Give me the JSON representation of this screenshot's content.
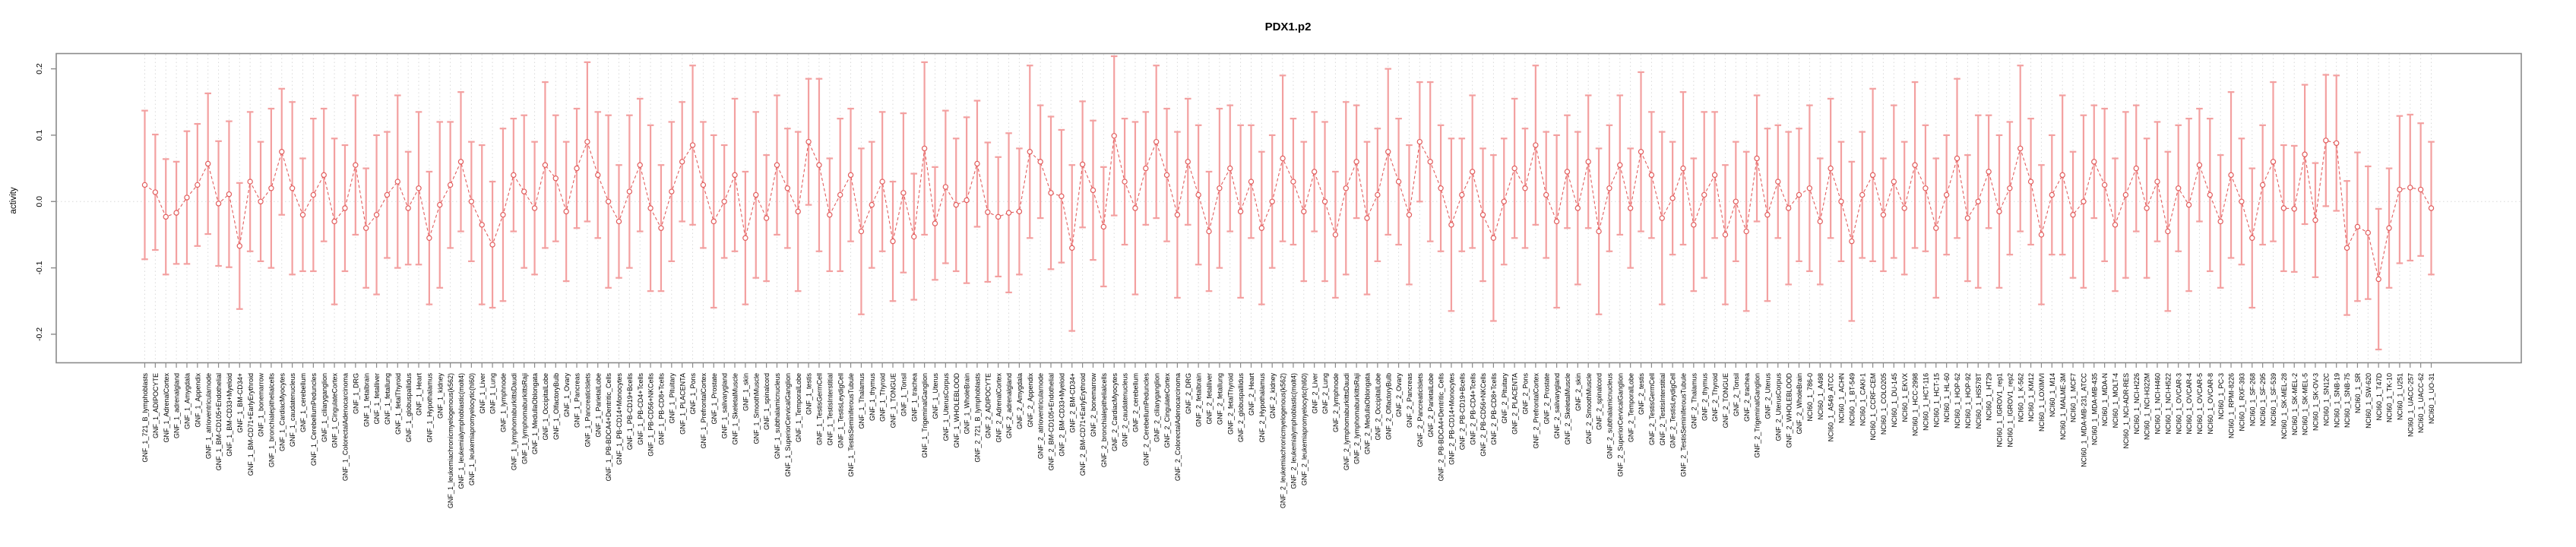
{
  "page": {
    "background": "#ffffff"
  },
  "chart_data": {
    "type": "line",
    "subtype": "points-with-confidence-intervals",
    "title": "PDX1.p2",
    "xlabel": "",
    "ylabel": "activity",
    "ylim": [
      -0.243,
      0.223
    ],
    "y_ticks": [
      0.2,
      0.1,
      0.0,
      -0.1,
      -0.2
    ],
    "grid": "vertical dotted line per category, dotted horizontal line at 0",
    "legend": "none",
    "point_style": "open-circle",
    "line_style": "dashed",
    "error_bars": true,
    "colors": {
      "point_line": "#e25d5d",
      "error_bar": "#f3a0a0",
      "grid": "#d9d9d9",
      "axis_box": "#8a8a8a",
      "text": "#000000",
      "background": "#ffffff"
    },
    "n_points": 218,
    "categories": [
      "GNF_1_721_B_lymphoblasts",
      "GNF_1_ADIPOCYTE",
      "GNF_1_AdrenalCortex",
      "GNF_1_adrenalgland",
      "GNF_1_Amygdala",
      "GNF_1_Appendix",
      "GNF_1_atrioventricularnode",
      "GNF_1_BM-CD105+Endothelial",
      "GNF_1_BM-CD33+Myeloid",
      "GNF_1_BM-CD34+",
      "GNF_1_BM-CD71+EarlyErythroid",
      "GNF_1_bonemarrow",
      "GNF_1_bronchialepithelialcells",
      "GNF_1_CardiacMyocytes",
      "GNF_1_caudatenucleus",
      "GNF_1_cerebellum",
      "GNF_1_CerebellumPeduncles",
      "GNF_1_ciliaryganglion",
      "GNF_1_CingulateCortex",
      "GNF_1_ColorectalAdenocarcinoma",
      "GNF_1_DRG",
      "GNF_1_fetalbrain",
      "GNF_1_fetalliver",
      "GNF_1_fetallung",
      "GNF_1_fetalThyroid",
      "GNF_1_globuspallidus",
      "GNF_1_Heart",
      "GNF_1_Hypothalamus",
      "GNF_1_kidney",
      "GNF_1_leukemiachronicmyelogenous(k562)",
      "GNF_1_leukemialymphoblastic(molt4)",
      "GNF_1_leukemiapromyelocytic(hl60)",
      "GNF_1_Liver",
      "GNF_1_Lung",
      "GNF_1_lymphnode",
      "GNF_1_lymphomaburkittsDaudi",
      "GNF_1_lymphomaburkittsRaji",
      "GNF_1_MedullaOblongata",
      "GNF_1_OccipitalLobe",
      "GNF_1_OlfactoryBulb",
      "GNF_1_Ovary",
      "GNF_1_Pancreas",
      "GNF_1_PancreaticIslets",
      "GNF_1_ParietalLobe",
      "GNF_1_PB-BDCA4+Dentritic_Cells",
      "GNF_1_PB-CD14+Monocytes",
      "GNF_1_PB-CD19+Bcells",
      "GNF_1_PB-CD4+Tcells",
      "GNF_1_PB-CD56+NKCells",
      "GNF_1_PB-CD8+Tcells",
      "GNF_1_Pituitary",
      "GNF_1_PLACENTA",
      "GNF_1_Pons",
      "GNF_1_PrefrontalCortex",
      "GNF_1_Prostate",
      "GNF_1_salivarygland",
      "GNF_1_SkeletalMuscle",
      "GNF_1_skin",
      "GNF_1_SmoothMuscle",
      "GNF_1_spinalcord",
      "GNF_1_subthalamicnucleus",
      "GNF_1_SuperiorCervicalGanglion",
      "GNF_1_TemporalLobe",
      "GNF_1_testis",
      "GNF_1_TestisGermCell",
      "GNF_1_TestisInterstitial",
      "GNF_1_TestisLeydigCell",
      "GNF_1_TestisSeminiferousTubule",
      "GNF_1_Thalamus",
      "GNF_1_thymus",
      "GNF_1_Thyroid",
      "GNF_1_TONGUE",
      "GNF_1_Tonsil",
      "GNF_1_trachea",
      "GNF_1_TrigeminalGanglion",
      "GNF_1_Uterus",
      "GNF_1_UterusCorpus",
      "GNF_1_WHOLEBLOOD",
      "GNF_1_WholeBrain",
      "GNF_2_721_B_lymphoblasts",
      "GNF_2_ADIPOCYTE",
      "GNF_2_AdrenalCortex",
      "GNF_2_adrenalgland",
      "GNF_2_Amygdala",
      "GNF_2_Appendix",
      "GNF_2_atrioventricularnode",
      "GNF_2_BM-CD105+Endothelial",
      "GNF_2_BM-CD33+Myeloid",
      "GNF_2_BM-CD34+",
      "GNF_2_BM-CD71+EarlyErythroid",
      "GNF_2_bonemarrow",
      "GNF_2_bronchialepithelialcells",
      "GNF_2_CardiacMyocytes",
      "GNF_2_caudatenucleus",
      "GNF_2_cerebellum",
      "GNF_2_CerebellumPeduncles",
      "GNF_2_ciliaryganglion",
      "GNF_2_CingulateCortex",
      "GNF_2_ColorectalAdenocarcinoma",
      "GNF_2_DRG",
      "GNF_2_fetalbrain",
      "GNF_2_fetalliver",
      "GNF_2_fetallung",
      "GNF_2_fetalThyroid",
      "GNF_2_globuspallidus",
      "GNF_2_Heart",
      "GNF_2_Hypothalamus",
      "GNF_2_kidney",
      "GNF_2_leukemiachronicmyelogenous(k562)",
      "GNF_2_leukemialymphoblastic(molt4)",
      "GNF_2_leukemiapromyelocytic(hl60)",
      "GNF_2_Liver",
      "GNF_2_Lung",
      "GNF_2_lymphnode",
      "GNF_2_lymphomaburkittsDaudi",
      "GNF_2_lymphomaburkittsRaji",
      "GNF_2_MedullaOblongata",
      "GNF_2_OccipitalLobe",
      "GNF_2_OlfactoryBulb",
      "GNF_2_Ovary",
      "GNF_2_Pancreas",
      "GNF_2_PancreaticIslets",
      "GNF_2_ParietalLobe",
      "GNF_2_PB-BDCA4+Dentritic_Cells",
      "GNF_2_PB-CD14+Monocytes",
      "GNF_2_PB-CD19+Bcells",
      "GNF_2_PB-CD4+Tcells",
      "GNF_2_PB-CD56+NKCells",
      "GNF_2_PB-CD8+Tcells",
      "GNF_2_Pituitary",
      "GNF_2_PLACENTA",
      "GNF_2_Pons",
      "GNF_2_PrefrontalCortex",
      "GNF_2_Prostate",
      "GNF_2_salivarygland",
      "GNF_2_SkeletalMuscle",
      "GNF_2_skin",
      "GNF_2_SmoothMuscle",
      "GNF_2_spinalcord",
      "GNF_2_subthalamicnucleus",
      "GNF_2_SuperiorCervicalGanglion",
      "GNF_2_TemporalLobe",
      "GNF_2_testis",
      "GNF_2_TestisGermCell",
      "GNF_2_TestisInterstitial",
      "GNF_2_TestisLeydigCell",
      "GNF_2_TestisSeminiferousTubule",
      "GNF_2_Thalamus",
      "GNF_2_thymus",
      "GNF_2_Thyroid",
      "GNF_2_TONGUE",
      "GNF_2_Tonsil",
      "GNF_2_trachea",
      "GNF_2_TrigeminalGanglion",
      "GNF_2_Uterus",
      "GNF_2_UterusCorpus",
      "GNF_2_WHOLEBLOOD",
      "GNF_2_WholeBrain",
      "NCI60_1_786-0",
      "NCI60_1_A498",
      "NCI60_1_A549_ATCC",
      "NCI60_1_ACHN",
      "NCI60_1_BT-549",
      "NCI60_1_CAKI-1",
      "NCI60_1_CCRF-CEM",
      "NCI60_1_COLO205",
      "NCI60_1_DU-145",
      "NCI60_1_EKVX",
      "NCI60_1_HCC-2998",
      "NCI60_1_HCT-116",
      "NCI60_1_HCT-15",
      "NCI60_1_HL-60",
      "NCI60_1_HOP-62",
      "NCI60_1_HOP-92",
      "NCI60_1_HS578T",
      "NCI60_1_HT29",
      "NCI60_1_IGROV1_rep1",
      "NCI60_1_IGROV1_rep2",
      "NCI60_1_K-562",
      "NCI60_1_KM12",
      "NCI60_1_LOXIMVI",
      "NCI60_1_M14",
      "NCI60_1_MALME-3M",
      "NCI60_1_MCF7",
      "NCI60_1_MDA-MB-231_ATCC",
      "NCI60_1_MDA-MB-435",
      "NCI60_1_MDA-N",
      "NCI60_1_MOLT-4",
      "NCI60_1_NCI-ADR-RES",
      "NCI60_1_NCI-H226",
      "NCI60_1_NCI-H322M",
      "NCI60_1_NCI-H460",
      "NCI60_1_NCI-H522",
      "NCI60_1_OVCAR-3",
      "NCI60_1_OVCAR-4",
      "NCI60_1_OVCAR-5",
      "NCI60_1_OVCAR-8",
      "NCI60_1_PC-3",
      "NCI60_1_RPMI-8226",
      "NCI60_1_RXF-393",
      "NCI60_1_SF-268",
      "NCI60_1_SF-295",
      "NCI60_1_SF-539",
      "NCI60_1_SK-MEL-28",
      "NCI60_1_SK-MEL-2",
      "NCI60_1_SK-MEL-5",
      "NCI60_1_SK-OV-3",
      "NCI60_1_SN12C",
      "NCI60_1_SNB-19",
      "NCI60_1_SNB-75",
      "NCI60_1_SR",
      "NCI60_1_SW-620",
      "NCI60_1_T47D",
      "NCI60_1_TK-10",
      "NCI60_1_U251",
      "NCI60_1_UACC-257",
      "NCI60_1_UACC-62",
      "NCI60_1_UO-31"
    ],
    "values": [
      0.025,
      0.014,
      -0.023,
      -0.017,
      0.006,
      0.025,
      0.057,
      -0.003,
      0.011,
      -0.067,
      0.03,
      0.0,
      0.02,
      0.075,
      0.02,
      -0.02,
      0.01,
      0.04,
      -0.03,
      -0.01,
      0.055,
      -0.04,
      -0.02,
      0.01,
      0.03,
      -0.01,
      0.02,
      -0.055,
      -0.005,
      0.025,
      0.06,
      0.0,
      -0.035,
      -0.065,
      -0.02,
      0.04,
      0.015,
      -0.01,
      0.055,
      0.035,
      -0.015,
      0.05,
      0.09,
      0.04,
      0.0,
      -0.03,
      0.015,
      0.055,
      -0.01,
      -0.04,
      0.015,
      0.06,
      0.085,
      0.025,
      -0.03,
      0.0,
      0.04,
      -0.055,
      0.01,
      -0.025,
      0.055,
      0.02,
      -0.015,
      0.09,
      0.055,
      -0.02,
      0.01,
      0.04,
      -0.045,
      -0.005,
      0.03,
      -0.06,
      0.013,
      -0.053,
      0.08,
      -0.033,
      0.022,
      -0.005,
      0.002,
      0.057,
      -0.016,
      -0.023,
      -0.017,
      -0.015,
      0.075,
      0.06,
      0.013,
      0.008,
      -0.07,
      0.056,
      0.017,
      -0.038,
      0.099,
      0.03,
      -0.01,
      0.05,
      0.09,
      0.04,
      -0.02,
      0.06,
      0.01,
      -0.045,
      0.02,
      0.05,
      -0.015,
      0.03,
      -0.04,
      0.0,
      0.065,
      0.03,
      -0.015,
      0.045,
      0.0,
      -0.05,
      0.02,
      0.06,
      -0.025,
      0.01,
      0.075,
      0.03,
      -0.02,
      0.09,
      0.06,
      0.02,
      -0.035,
      0.01,
      0.045,
      -0.02,
      -0.055,
      0.0,
      0.05,
      0.02,
      0.085,
      0.01,
      -0.03,
      0.045,
      -0.01,
      0.06,
      -0.045,
      0.02,
      0.055,
      -0.01,
      0.075,
      0.04,
      -0.025,
      0.005,
      0.05,
      -0.035,
      0.01,
      0.04,
      -0.05,
      0.0,
      -0.045,
      0.065,
      -0.02,
      0.03,
      -0.01,
      0.01,
      0.02,
      -0.03,
      0.05,
      0.0,
      -0.06,
      0.01,
      0.04,
      -0.02,
      0.03,
      -0.01,
      0.055,
      0.02,
      -0.04,
      0.01,
      0.065,
      -0.025,
      0.0,
      0.045,
      -0.015,
      0.02,
      0.08,
      0.03,
      -0.05,
      0.01,
      0.04,
      -0.02,
      0.0,
      0.06,
      0.025,
      -0.035,
      0.01,
      0.05,
      -0.01,
      0.03,
      -0.045,
      0.02,
      -0.005,
      0.055,
      0.01,
      -0.03,
      0.04,
      0.0,
      -0.055,
      0.025,
      0.06,
      -0.01,
      -0.011,
      0.071,
      -0.028,
      0.092,
      0.088,
      -0.07,
      -0.038,
      -0.047,
      -0.117,
      -0.04,
      0.018,
      0.021,
      0.018,
      -0.01
    ],
    "ci_half": [
      0.112,
      0.087,
      0.087,
      0.077,
      0.1,
      0.092,
      0.106,
      0.094,
      0.11,
      0.095,
      0.105,
      0.09,
      0.12,
      0.095,
      0.13,
      0.085,
      0.115,
      0.1,
      0.125,
      0.095,
      0.105,
      0.09,
      0.12,
      0.095,
      0.13,
      0.085,
      0.115,
      0.1,
      0.125,
      0.095,
      0.105,
      0.09,
      0.12,
      0.095,
      0.13,
      0.085,
      0.115,
      0.1,
      0.125,
      0.095,
      0.105,
      0.09,
      0.12,
      0.095,
      0.13,
      0.085,
      0.115,
      0.1,
      0.125,
      0.095,
      0.105,
      0.09,
      0.12,
      0.095,
      0.13,
      0.085,
      0.115,
      0.1,
      0.125,
      0.095,
      0.105,
      0.09,
      0.12,
      0.095,
      0.13,
      0.085,
      0.115,
      0.1,
      0.125,
      0.095,
      0.105,
      0.09,
      0.12,
      0.095,
      0.13,
      0.085,
      0.115,
      0.1,
      0.125,
      0.095,
      0.105,
      0.09,
      0.12,
      0.095,
      0.13,
      0.085,
      0.115,
      0.1,
      0.125,
      0.095,
      0.105,
      0.09,
      0.12,
      0.095,
      0.13,
      0.085,
      0.115,
      0.1,
      0.125,
      0.095,
      0.105,
      0.09,
      0.12,
      0.095,
      0.13,
      0.085,
      0.115,
      0.1,
      0.125,
      0.095,
      0.105,
      0.09,
      0.12,
      0.095,
      0.13,
      0.085,
      0.115,
      0.1,
      0.125,
      0.095,
      0.105,
      0.09,
      0.12,
      0.095,
      0.13,
      0.085,
      0.115,
      0.1,
      0.125,
      0.095,
      0.105,
      0.09,
      0.12,
      0.095,
      0.13,
      0.085,
      0.115,
      0.1,
      0.125,
      0.095,
      0.105,
      0.09,
      0.12,
      0.095,
      0.13,
      0.085,
      0.115,
      0.1,
      0.125,
      0.095,
      0.105,
      0.09,
      0.12,
      0.095,
      0.13,
      0.085,
      0.115,
      0.1,
      0.125,
      0.095,
      0.105,
      0.09,
      0.12,
      0.095,
      0.13,
      0.085,
      0.115,
      0.1,
      0.125,
      0.095,
      0.105,
      0.09,
      0.12,
      0.095,
      0.13,
      0.085,
      0.115,
      0.1,
      0.125,
      0.095,
      0.105,
      0.09,
      0.12,
      0.095,
      0.13,
      0.085,
      0.115,
      0.1,
      0.125,
      0.095,
      0.105,
      0.09,
      0.12,
      0.095,
      0.13,
      0.085,
      0.115,
      0.1,
      0.125,
      0.095,
      0.105,
      0.09,
      0.12,
      0.095,
      0.095,
      0.105,
      0.086,
      0.099,
      0.102,
      0.101,
      0.112,
      0.1,
      0.106,
      0.09,
      0.111,
      0.11,
      0.1,
      0.1
    ]
  }
}
